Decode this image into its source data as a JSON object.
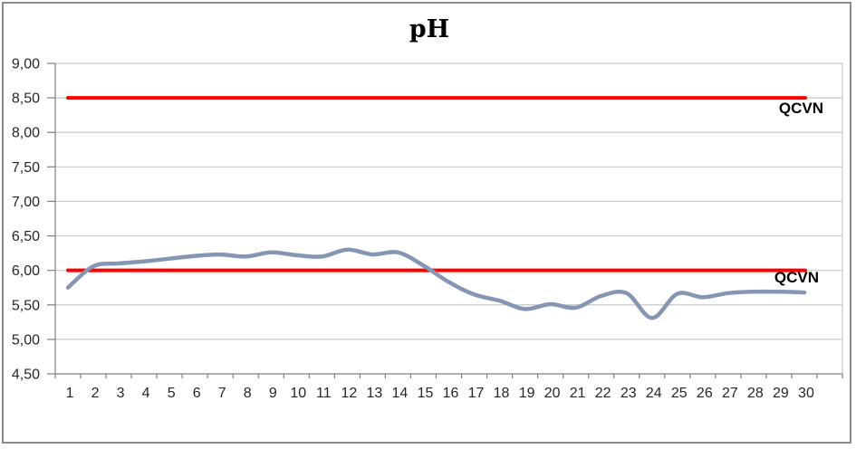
{
  "title": "pH",
  "chart_data": {
    "type": "line",
    "title": "pH",
    "smooth": true,
    "grid": true,
    "legend": "none",
    "x": [
      1,
      2,
      3,
      4,
      5,
      6,
      7,
      8,
      9,
      10,
      11,
      12,
      13,
      14,
      15,
      16,
      17,
      18,
      19,
      20,
      21,
      22,
      23,
      24,
      25,
      26,
      27,
      28,
      29,
      30
    ],
    "x_labels": [
      "1",
      "2",
      "3",
      "4",
      "5",
      "6",
      "7",
      "8",
      "9",
      "10",
      "11",
      "12",
      "13",
      "14",
      "15",
      "16",
      "17",
      "18",
      "19",
      "20",
      "21",
      "22",
      "23",
      "24",
      "25",
      "26",
      "27",
      "28",
      "29",
      "30"
    ],
    "series": [
      {
        "name": "pH",
        "color": "#8496B4",
        "values": [
          5.75,
          6.06,
          6.1,
          6.13,
          6.17,
          6.21,
          6.23,
          6.2,
          6.26,
          6.22,
          6.2,
          6.3,
          6.23,
          6.26,
          6.07,
          5.83,
          5.65,
          5.56,
          5.44,
          5.51,
          5.46,
          5.63,
          5.67,
          5.31,
          5.66,
          5.61,
          5.67,
          5.69,
          5.69,
          5.68
        ]
      }
    ],
    "reference_lines": [
      {
        "label": "QCVN",
        "value": 8.5,
        "color": "#FF0000"
      },
      {
        "label": "QCVN",
        "value": 6.0,
        "color": "#FF0000"
      }
    ],
    "ylim": [
      4.5,
      9.0
    ],
    "ytick_step": 0.5,
    "yticks": [
      {
        "v": 9.0,
        "label": "9,00"
      },
      {
        "v": 8.5,
        "label": "8,50"
      },
      {
        "v": 8.0,
        "label": "8,00"
      },
      {
        "v": 7.5,
        "label": "7,50"
      },
      {
        "v": 7.0,
        "label": "7,00"
      },
      {
        "v": 6.5,
        "label": "6,50"
      },
      {
        "v": 6.0,
        "label": "6,00"
      },
      {
        "v": 5.5,
        "label": "5,50"
      },
      {
        "v": 5.0,
        "label": "5,00"
      },
      {
        "v": 4.5,
        "label": "4,50"
      }
    ],
    "decimal_separator": ",",
    "colors": {
      "series": "#8496B4",
      "reference": "#FF0000",
      "gridline": "#C9C9C9",
      "axis": "#808080",
      "label": "#262626"
    }
  }
}
